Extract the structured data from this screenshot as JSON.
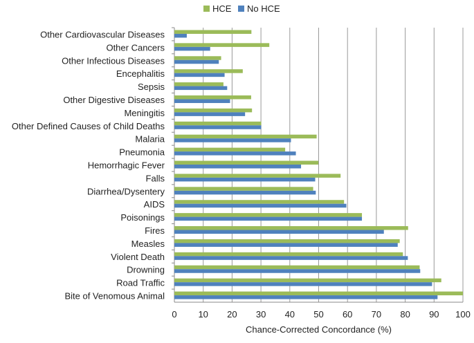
{
  "chart_data": {
    "type": "bar",
    "orientation": "horizontal",
    "title": "",
    "xlabel": "Chance-Corrected Concordance (%)",
    "ylabel": "",
    "xlim": [
      0,
      100
    ],
    "xticks": [
      0,
      10,
      20,
      30,
      40,
      50,
      60,
      70,
      80,
      90,
      100
    ],
    "grid": "vertical",
    "legend_position": "top",
    "categories": [
      "Other Cardiovascular Diseases",
      "Other Cancers",
      "Other Infectious Diseases",
      "Encephalitis",
      "Sepsis",
      "Other Digestive Diseases",
      "Meningitis",
      "Other Defined Causes of Child Deaths",
      "Malaria",
      "Pneumonia",
      "Hemorrhagic Fever",
      "Falls",
      "Diarrhea/Dysentery",
      "AIDS",
      "Poisonings",
      "Fires",
      "Measles",
      "Violent Death",
      "Drowning",
      "Road Traffic",
      "Bite of Venomous Animal"
    ],
    "series": [
      {
        "name": "HCE",
        "color": "#9bbb59",
        "values": [
          26.7,
          32.9,
          16.2,
          23.7,
          17.0,
          26.6,
          26.9,
          30.1,
          49.3,
          38.4,
          49.9,
          57.6,
          48.1,
          58.8,
          65.0,
          81.0,
          78.1,
          79.2,
          85.0,
          92.5,
          100
        ]
      },
      {
        "name": "No HCE",
        "color": "#4f81bd",
        "values": [
          4.3,
          12.4,
          15.4,
          17.4,
          18.3,
          19.3,
          24.5,
          30.1,
          40.4,
          42.1,
          43.9,
          48.8,
          49.0,
          59.6,
          65.0,
          72.6,
          77.4,
          80.9,
          85.2,
          89.3,
          91.2
        ]
      }
    ]
  }
}
